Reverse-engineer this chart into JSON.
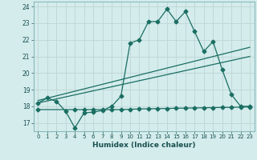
{
  "title": "",
  "xlabel": "Humidex (Indice chaleur)",
  "bg_color": "#d4ecec",
  "grid_color": "#c2d8d8",
  "line_color": "#1a6e62",
  "xlim": [
    -0.5,
    23.5
  ],
  "ylim": [
    16.5,
    24.3
  ],
  "yticks": [
    17,
    18,
    19,
    20,
    21,
    22,
    23,
    24
  ],
  "xticks": [
    0,
    1,
    2,
    3,
    4,
    5,
    6,
    7,
    8,
    9,
    10,
    11,
    12,
    13,
    14,
    15,
    16,
    17,
    18,
    19,
    20,
    21,
    22,
    23
  ],
  "main_x": [
    0,
    1,
    2,
    3,
    4,
    5,
    6,
    7,
    8,
    9,
    10,
    11,
    12,
    13,
    14,
    15,
    16,
    17,
    18,
    19,
    20,
    21,
    22,
    23
  ],
  "main_y": [
    18.2,
    18.5,
    18.3,
    17.7,
    16.7,
    17.6,
    17.65,
    17.75,
    18.0,
    18.6,
    21.8,
    22.0,
    23.1,
    23.1,
    23.85,
    23.1,
    23.7,
    22.5,
    21.3,
    21.9,
    20.2,
    18.7,
    18.0,
    18.0
  ],
  "trend1_x": [
    0,
    23
  ],
  "trend1_y": [
    18.35,
    21.55
  ],
  "trend2_x": [
    0,
    23
  ],
  "trend2_y": [
    18.2,
    21.0
  ],
  "flat_x": [
    0,
    4,
    5,
    6,
    7,
    8,
    9,
    10,
    11,
    12,
    13,
    14,
    15,
    16,
    17,
    18,
    19,
    20,
    21,
    22,
    23
  ],
  "flat_y": [
    17.8,
    17.8,
    17.8,
    17.8,
    17.8,
    17.8,
    17.8,
    17.82,
    17.84,
    17.85,
    17.86,
    17.87,
    17.88,
    17.89,
    17.9,
    17.91,
    17.92,
    17.93,
    17.94,
    17.95,
    17.96
  ]
}
